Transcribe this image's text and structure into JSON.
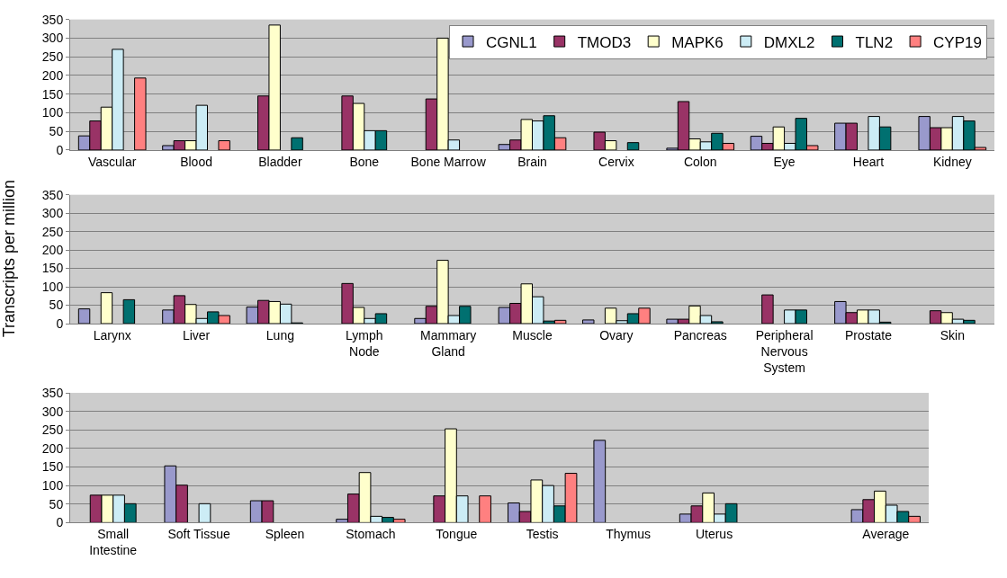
{
  "chart_data": [
    {
      "type": "bar",
      "categories": [
        "Vascular",
        "Blood",
        "Bladder",
        "Bone",
        "Bone Marrow",
        "Brain",
        "Cervix",
        "Colon",
        "Eye",
        "Heart",
        "Kidney"
      ],
      "ylim": [
        0,
        350
      ],
      "yticks": [
        0,
        50,
        100,
        150,
        200,
        250,
        300,
        350
      ],
      "grid": "y",
      "legend": "top right",
      "series": [
        {
          "name": "CGNL1",
          "color": "#9999cc",
          "values": [
            38,
            12,
            null,
            null,
            null,
            15,
            null,
            5,
            37,
            72,
            90
          ]
        },
        {
          "name": "TMOD3",
          "color": "#993366",
          "values": [
            78,
            25,
            145,
            145,
            137,
            27,
            48,
            130,
            18,
            72,
            60
          ]
        },
        {
          "name": "MAPK6",
          "color": "#ffffcc",
          "values": [
            115,
            25,
            335,
            125,
            300,
            82,
            25,
            30,
            62,
            null,
            60
          ]
        },
        {
          "name": "DMXL2",
          "color": "#ccecf5",
          "values": [
            270,
            120,
            null,
            52,
            27,
            78,
            null,
            22,
            18,
            90,
            90
          ]
        },
        {
          "name": "TLN2",
          "color": "#007070",
          "values": [
            null,
            null,
            33,
            52,
            null,
            92,
            20,
            45,
            85,
            62,
            78
          ]
        },
        {
          "name": "CYP19",
          "color": "#ff8080",
          "values": [
            193,
            25,
            null,
            null,
            null,
            33,
            null,
            18,
            12,
            null,
            7
          ]
        }
      ]
    },
    {
      "type": "bar",
      "ylabel": "Transcripts per million",
      "categories": [
        "Larynx",
        "Liver",
        "Lung",
        "Lymph\nNode",
        "Mammary\nGland",
        "Muscle",
        "Ovary",
        "Pancreas",
        "Peripheral\nNervous\nSystem",
        "Prostate",
        "Skin"
      ],
      "ylim": [
        0,
        350
      ],
      "yticks": [
        0,
        50,
        100,
        150,
        200,
        250,
        300,
        350
      ],
      "grid": "y",
      "series": [
        {
          "color": "#9999cc",
          "values": [
            40,
            37,
            45,
            null,
            14,
            44,
            10,
            12,
            null,
            60,
            null
          ]
        },
        {
          "color": "#993366",
          "values": [
            null,
            76,
            63,
            109,
            47,
            55,
            null,
            12,
            78,
            30,
            35
          ]
        },
        {
          "color": "#ffffcc",
          "values": [
            84,
            52,
            60,
            44,
            172,
            108,
            42,
            48,
            null,
            37,
            30
          ]
        },
        {
          "color": "#ccecf5",
          "values": [
            null,
            14,
            53,
            14,
            22,
            73,
            8,
            22,
            37,
            37,
            12
          ]
        },
        {
          "color": "#007070",
          "values": [
            65,
            32,
            2,
            27,
            47,
            7,
            27,
            5,
            37,
            4,
            9
          ]
        },
        {
          "color": "#ff8080",
          "values": [
            null,
            22,
            null,
            null,
            null,
            9,
            42,
            null,
            null,
            null,
            null
          ]
        }
      ]
    },
    {
      "type": "bar",
      "categories": [
        "Small\nIntestine",
        "Soft Tissue",
        "Spleen",
        "Stomach",
        "Tongue",
        "Testis",
        "Thymus",
        "Uterus",
        null,
        "Average"
      ],
      "ylim": [
        0,
        350
      ],
      "yticks": [
        0,
        50,
        100,
        150,
        200,
        250,
        300,
        350
      ],
      "grid": "y",
      "series": [
        {
          "color": "#9999cc",
          "values": [
            null,
            153,
            59,
            9,
            null,
            53,
            222,
            23,
            null,
            35
          ]
        },
        {
          "color": "#993366",
          "values": [
            74,
            101,
            59,
            77,
            72,
            30,
            null,
            45,
            null,
            62
          ]
        },
        {
          "color": "#ffffcc",
          "values": [
            74,
            null,
            null,
            135,
            253,
            115,
            null,
            80,
            null,
            85
          ]
        },
        {
          "color": "#ccecf5",
          "values": [
            74,
            51,
            null,
            17,
            72,
            100,
            null,
            23,
            null,
            47
          ]
        },
        {
          "color": "#007070",
          "values": [
            51,
            null,
            null,
            14,
            null,
            45,
            null,
            51,
            null,
            30
          ]
        },
        {
          "color": "#ff8080",
          "values": [
            null,
            null,
            null,
            9,
            72,
            133,
            null,
            null,
            null,
            17
          ]
        }
      ]
    }
  ]
}
